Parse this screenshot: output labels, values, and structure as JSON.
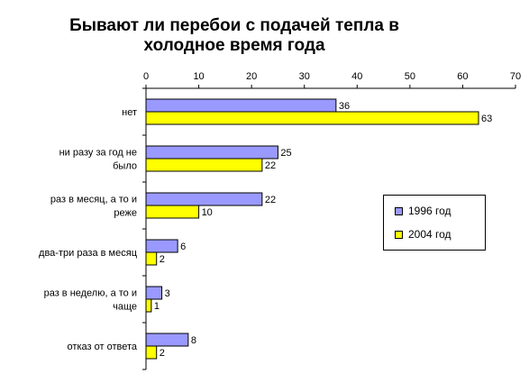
{
  "chart_data": {
    "type": "bar",
    "orientation": "horizontal",
    "title_lines": [
      "Бывают ли перебои с подачей тепла в",
      "холодное время года"
    ],
    "categories": [
      [
        "нет"
      ],
      [
        "ни разу за год не",
        "было"
      ],
      [
        "раз в месяц, а то и",
        "реже"
      ],
      [
        "два-три раза в месяц"
      ],
      [
        "раз в неделю, а то и",
        "чаще"
      ],
      [
        "отказ от ответа"
      ]
    ],
    "series": [
      {
        "name": "1996 год",
        "color": "#9999ff",
        "values": [
          36,
          25,
          22,
          6,
          3,
          8
        ]
      },
      {
        "name": "2004 год",
        "color": "#ffff00",
        "values": [
          63,
          22,
          10,
          2,
          1,
          2
        ]
      }
    ],
    "xlim": [
      0,
      70
    ],
    "xticks": [
      0,
      10,
      20,
      30,
      40,
      50,
      60,
      70
    ],
    "xaxis_position": "top",
    "grid": false,
    "legend_position": "right"
  }
}
